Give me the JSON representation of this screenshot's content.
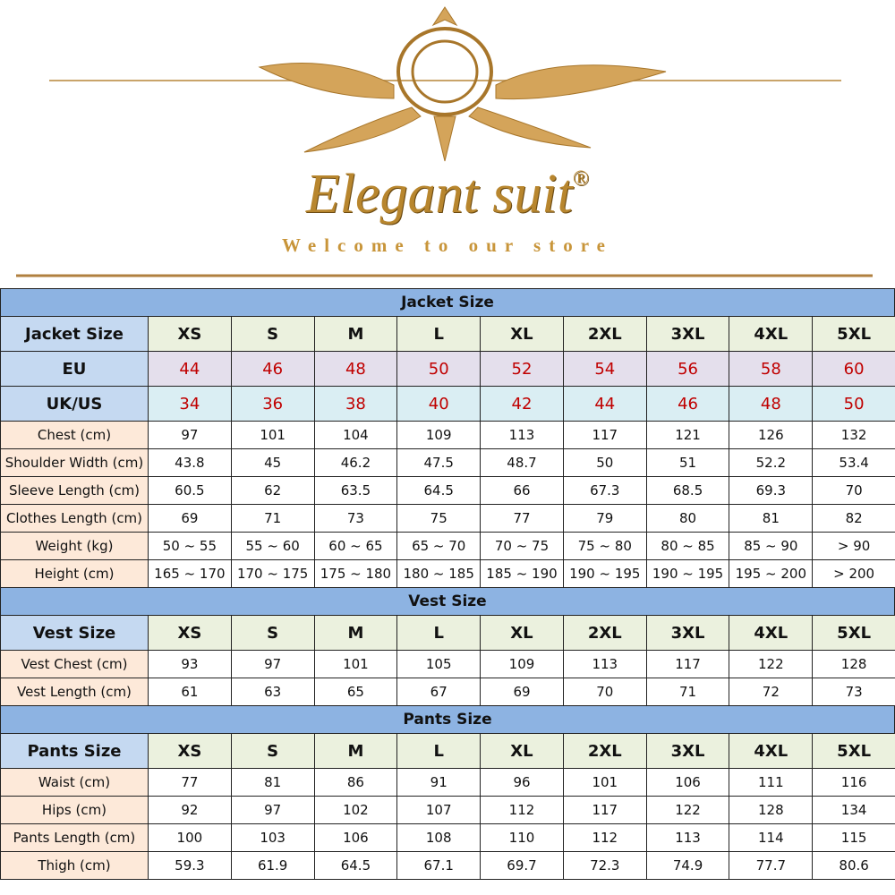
{
  "header": {
    "brand": "Elegant suit",
    "mark": "®",
    "tagline": "Welcome to our store"
  },
  "sections": [
    {
      "title": "Jacket Size",
      "header": [
        "Jacket Size",
        "XS",
        "S",
        "M",
        "L",
        "XL",
        "2XL",
        "3XL",
        "4XL",
        "5XL"
      ],
      "rows": [
        [
          "EU",
          "44",
          "46",
          "48",
          "50",
          "52",
          "54",
          "56",
          "58",
          "60"
        ],
        [
          "UK/US",
          "34",
          "36",
          "38",
          "40",
          "42",
          "44",
          "46",
          "48",
          "50"
        ],
        [
          "Chest (cm)",
          "97",
          "101",
          "104",
          "109",
          "113",
          "117",
          "121",
          "126",
          "132"
        ],
        [
          "Shoulder Width (cm)",
          "43.8",
          "45",
          "46.2",
          "47.5",
          "48.7",
          "50",
          "51",
          "52.2",
          "53.4"
        ],
        [
          "Sleeve Length (cm)",
          "60.5",
          "62",
          "63.5",
          "64.5",
          "66",
          "67.3",
          "68.5",
          "69.3",
          "70"
        ],
        [
          "Clothes Length (cm)",
          "69",
          "71",
          "73",
          "75",
          "77",
          "79",
          "80",
          "81",
          "82"
        ],
        [
          "Weight (kg)",
          "50 ~ 55",
          "55 ~ 60",
          "60 ~ 65",
          "65 ~ 70",
          "70 ~ 75",
          "75 ~ 80",
          "80 ~ 85",
          "85 ~ 90",
          "> 90"
        ],
        [
          "Height (cm)",
          "165 ~ 170",
          "170 ~ 175",
          "175 ~ 180",
          "180 ~ 185",
          "185 ~ 190",
          "190 ~ 195",
          "190 ~ 195",
          "195 ~ 200",
          "> 200"
        ]
      ]
    },
    {
      "title": "Vest Size",
      "header": [
        "Vest Size",
        "XS",
        "S",
        "M",
        "L",
        "XL",
        "2XL",
        "3XL",
        "4XL",
        "5XL"
      ],
      "rows": [
        [
          "Vest Chest (cm)",
          "93",
          "97",
          "101",
          "105",
          "109",
          "113",
          "117",
          "122",
          "128"
        ],
        [
          "Vest Length (cm)",
          "61",
          "63",
          "65",
          "67",
          "69",
          "70",
          "71",
          "72",
          "73"
        ]
      ]
    },
    {
      "title": "Pants Size",
      "header": [
        "Pants Size",
        "XS",
        "S",
        "M",
        "L",
        "XL",
        "2XL",
        "3XL",
        "4XL",
        "5XL"
      ],
      "rows": [
        [
          "Waist (cm)",
          "77",
          "81",
          "86",
          "91",
          "96",
          "101",
          "106",
          "111",
          "116"
        ],
        [
          "Hips (cm)",
          "92",
          "97",
          "102",
          "107",
          "112",
          "117",
          "122",
          "128",
          "134"
        ],
        [
          "Pants Length (cm)",
          "100",
          "103",
          "106",
          "108",
          "110",
          "112",
          "113",
          "114",
          "115"
        ],
        [
          "Thigh (cm)",
          "59.3",
          "61.9",
          "64.5",
          "67.1",
          "69.7",
          "72.3",
          "74.9",
          "77.7",
          "80.6"
        ]
      ]
    }
  ]
}
